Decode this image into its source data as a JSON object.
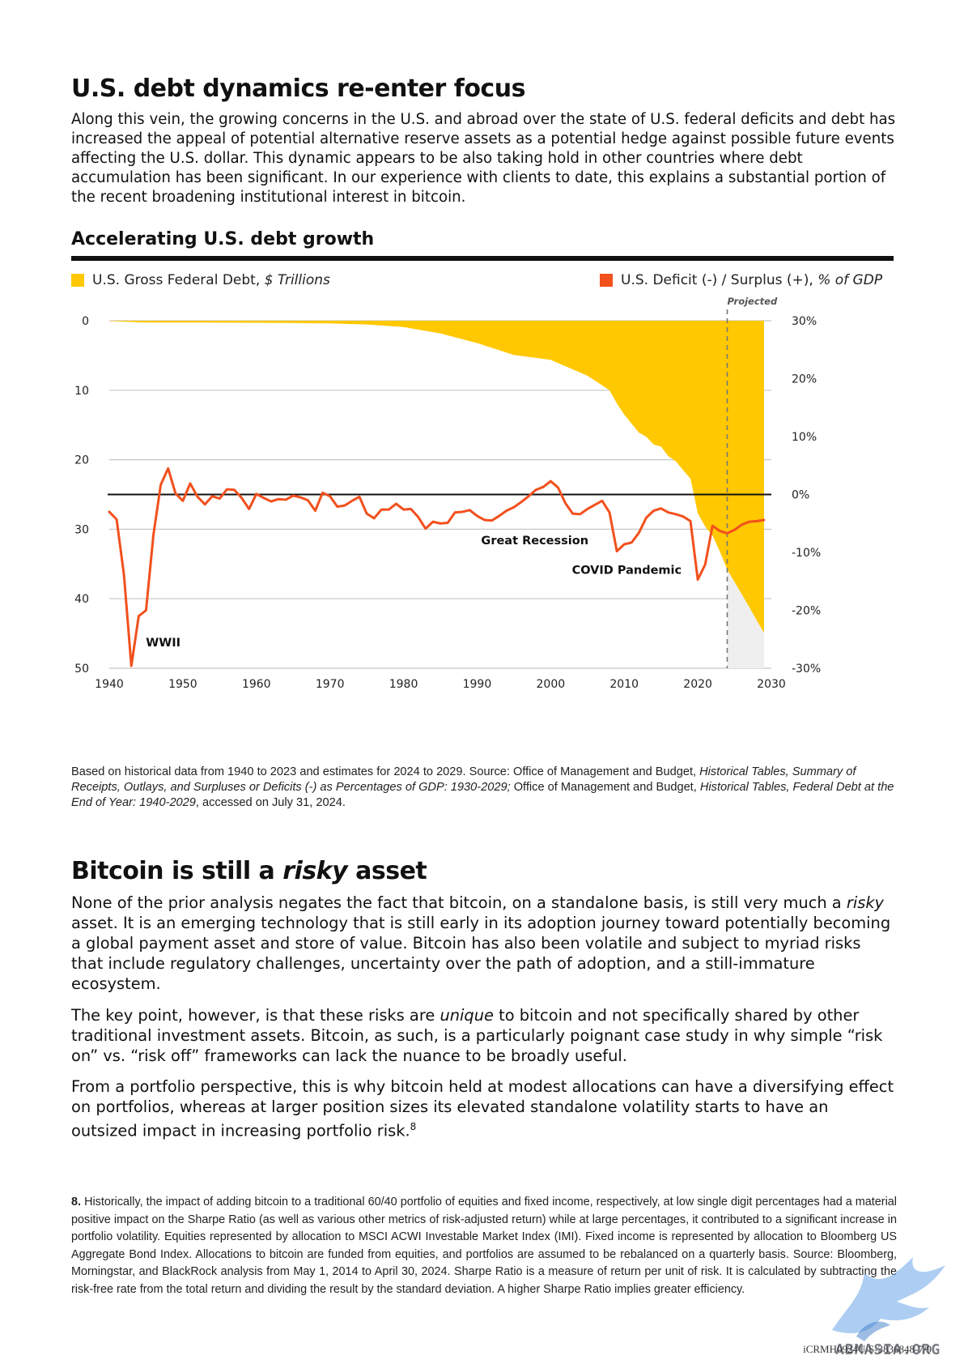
{
  "section1": {
    "heading": "U.S. debt dynamics re-enter focus",
    "body": "Along this vein, the growing concerns in the U.S. and abroad over the state of U.S. federal deficits and debt has increased the appeal of potential alternative reserve assets as a potential hedge against possible future events affecting the U.S. dollar. This dynamic appears to be also taking hold in other countries where debt accumulation has been significant. In our experience with clients to date, this explains a substantial portion of the recent broadening institutional interest in bitcoin."
  },
  "chart": {
    "title": "Accelerating U.S. debt growth",
    "legend_debt_plain": "U.S. Gross Federal Debt, ",
    "legend_debt_italic": "$ Trillions",
    "legend_deficit_plain": "U.S. Deficit (-) / Surplus (+), ",
    "legend_deficit_italic": "% of GDP",
    "projected_label": "Projected",
    "annotations": [
      "WWII",
      "Great Recession",
      "COVID Pandemic"
    ],
    "source_note_parts": [
      {
        "text": "Based on historical data from 1940 to 2023 and estimates for 2024 to 2029. Source: Office of Management and Budget, ",
        "italic": false
      },
      {
        "text": "Historical Tables, Summary of Receipts, Outlays, and Surpluses or Deficits (-) as Percentages of GDP: 1930-2029;",
        "italic": true
      },
      {
        "text": " Office of Management and Budget, ",
        "italic": false
      },
      {
        "text": "Historical Tables, Federal Debt at the End of Year: 1940-2029",
        "italic": true
      },
      {
        "text": ", accessed on July 31, 2024.",
        "italic": false
      }
    ]
  },
  "chart_data": {
    "type": "area",
    "title": "Accelerating U.S. debt growth",
    "colors": {
      "debt": "#FFC800",
      "deficit": "#F2501D",
      "projected_fill": "#EFEFEF"
    },
    "x_ticks": [
      1940,
      1950,
      1960,
      1970,
      1980,
      1990,
      2000,
      2010,
      2020,
      2030
    ],
    "left_axis": {
      "ticks": [
        "0",
        "10",
        "20",
        "30",
        "40",
        "50"
      ],
      "range": [
        0,
        50
      ],
      "inverted": true
    },
    "right_axis": {
      "ticks": [
        "30%",
        "20%",
        "10%",
        "0%",
        "-10%",
        "-20%",
        "-30%"
      ],
      "range": [
        -30,
        30
      ]
    },
    "projection_start_year": 2024,
    "series": [
      {
        "name": "U.S. Gross Federal Debt, $ Trillions",
        "axis": "left",
        "x": [
          1940,
          1945,
          1950,
          1955,
          1960,
          1965,
          1970,
          1975,
          1980,
          1985,
          1990,
          1995,
          2000,
          2005,
          2008,
          2009,
          2010,
          2011,
          2012,
          2013,
          2014,
          2015,
          2016,
          2017,
          2018,
          2019,
          2020,
          2021,
          2022,
          2023,
          2024,
          2025,
          2026,
          2027,
          2028,
          2029
        ],
        "values": [
          0.05,
          0.26,
          0.26,
          0.27,
          0.29,
          0.32,
          0.38,
          0.54,
          0.91,
          1.82,
          3.2,
          4.92,
          5.63,
          7.91,
          10.0,
          11.9,
          13.5,
          14.8,
          16.1,
          16.7,
          17.8,
          18.1,
          19.5,
          20.2,
          21.5,
          22.7,
          27.7,
          29.6,
          30.9,
          33.2,
          35.8,
          37.6,
          39.4,
          41.2,
          43.1,
          44.9
        ]
      },
      {
        "name": "U.S. Deficit (-) / Surplus (+), % of GDP",
        "axis": "right",
        "x": [
          1940,
          1941,
          1942,
          1943,
          1944,
          1945,
          1946,
          1947,
          1948,
          1949,
          1950,
          1951,
          1952,
          1953,
          1954,
          1955,
          1956,
          1957,
          1958,
          1959,
          1960,
          1961,
          1962,
          1963,
          1964,
          1965,
          1966,
          1967,
          1968,
          1969,
          1970,
          1971,
          1972,
          1973,
          1974,
          1975,
          1976,
          1977,
          1978,
          1979,
          1980,
          1981,
          1982,
          1983,
          1984,
          1985,
          1986,
          1987,
          1988,
          1989,
          1990,
          1991,
          1992,
          1993,
          1994,
          1995,
          1996,
          1997,
          1998,
          1999,
          2000,
          2001,
          2002,
          2003,
          2004,
          2005,
          2006,
          2007,
          2008,
          2009,
          2010,
          2011,
          2012,
          2013,
          2014,
          2015,
          2016,
          2017,
          2018,
          2019,
          2020,
          2021,
          2022,
          2023,
          2024,
          2025,
          2026,
          2027,
          2028,
          2029
        ],
        "values": [
          -3.0,
          -4.3,
          -13.9,
          -29.6,
          -21.0,
          -20.0,
          -7.0,
          1.7,
          4.5,
          0.2,
          -1.1,
          1.9,
          -0.4,
          -1.7,
          -0.3,
          -0.7,
          0.9,
          0.8,
          -0.6,
          -2.5,
          0.1,
          -0.6,
          -1.2,
          -0.8,
          -0.9,
          -0.2,
          -0.5,
          -1.0,
          -2.8,
          0.3,
          -0.3,
          -2.1,
          -1.9,
          -1.1,
          -0.4,
          -3.3,
          -4.1,
          -2.6,
          -2.6,
          -1.6,
          -2.6,
          -2.5,
          -3.9,
          -5.9,
          -4.7,
          -5.0,
          -4.9,
          -3.1,
          -3.0,
          -2.7,
          -3.7,
          -4.4,
          -4.5,
          -3.7,
          -2.8,
          -2.2,
          -1.3,
          -0.3,
          0.8,
          1.3,
          2.3,
          1.2,
          -1.5,
          -3.3,
          -3.4,
          -2.5,
          -1.8,
          -1.1,
          -3.1,
          -9.8,
          -8.6,
          -8.3,
          -6.6,
          -4.0,
          -2.8,
          -2.4,
          -3.1,
          -3.4,
          -3.8,
          -4.6,
          -14.7,
          -12.1,
          -5.4,
          -6.3,
          -6.7,
          -6.1,
          -5.2,
          -4.7,
          -4.6,
          -4.4
        ]
      }
    ]
  },
  "section2": {
    "heading_pre": "Bitcoin is still a ",
    "heading_em": "risky",
    "heading_post": " asset",
    "p1_a": "None of the prior analysis negates the fact that bitcoin, on a standalone basis, is still very much a ",
    "p1_em": "risky",
    "p1_b": " asset. It is an emerging technology that is still early in its adoption journey toward potentially becoming a global payment asset and store of value. Bitcoin has also been volatile and subject to myriad risks that include regulatory challenges, uncertainty over the path of adoption, and a still-immature ecosystem.",
    "p2_a": "The key point, however, is that these risks are ",
    "p2_em": "unique",
    "p2_b": " to bitcoin and not specifically shared by other traditional investment assets. Bitcoin, as such, is a particularly poignant case study in why simple “risk on” vs. “risk off” frameworks can lack the nuance to be broadly useful.",
    "p3": "From a portfolio perspective, this is why bitcoin held at modest allocations can have a diversifying effect on portfolios, whereas at larger position sizes its elevated standalone volatility starts to have an outsized impact in increasing portfolio risk.",
    "p3_sup": "8"
  },
  "footnote": {
    "number": "8.",
    "text": "Historically, the impact of adding bitcoin to a traditional 60/40 portfolio of equities and fixed income, respectively, at low single digit percentages had a material positive impact on the Sharpe Ratio (as well as various other metrics of risk-adjusted return) while at large percentages, it contributed to a significant increase in portfolio volatility. Equities represented by allocation to MSCI ACWI Investable Market Index (IMI). Fixed income is represented by allocation to Bloomberg US Aggregate Bond Index. Allocations to bitcoin are funded from equities, and portfolios are assumed to be rebalanced on a quarterly basis. Source: Bloomberg, Morningstar, and BlackRock analysis from May 1, 2014 to April 30, 2024.  Sharpe Ratio is a measure of return per unit of risk. It is calculated by subtracting the risk-free rate from the total return and dividing the result by the standard deviation. A higher Sharpe Ratio implies greater efficiency."
  },
  "doc_code": "iCRMH0924U/S-3836848-7/9",
  "watermark_text": "ABMASIA.ORG"
}
